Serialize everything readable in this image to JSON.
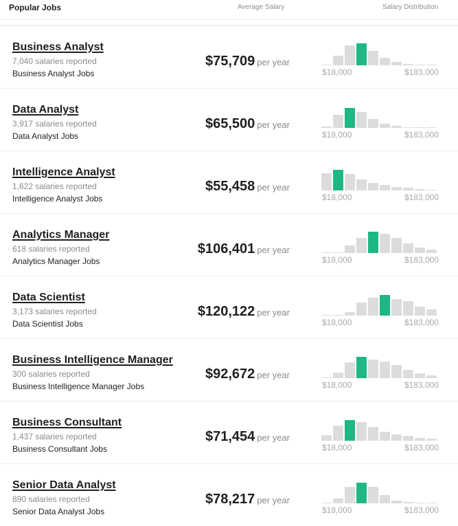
{
  "header": {
    "title": "Popular Jobs",
    "salary_label": "Average Salary",
    "distribution_label": "Salary Distribution"
  },
  "colors": {
    "active_bar": "#1fb783",
    "bar": "#dcdcdc"
  },
  "jobs": [
    {
      "title": "Business Analyst",
      "count": "7,040 salaries reported",
      "link": "Business Analyst Jobs",
      "salary": "$75,709",
      "unit": "per year",
      "min_label": "$18,000",
      "max_label": "$183,000",
      "dist": [
        0.02,
        0.38,
        0.78,
        0.86,
        0.58,
        0.3,
        0.14,
        0.06,
        0.04,
        0.02
      ],
      "active": 3
    },
    {
      "title": "Data Analyst",
      "count": "3,917 salaries reported",
      "link": "Data Analyst Jobs",
      "salary": "$65,500",
      "unit": "per year",
      "min_label": "$18,000",
      "max_label": "$183,000",
      "dist": [
        0.06,
        0.52,
        0.78,
        0.62,
        0.34,
        0.16,
        0.08,
        0.03,
        0.02,
        0.01
      ],
      "active": 2
    },
    {
      "title": "Intelligence Analyst",
      "count": "1,622 salaries reported",
      "link": "Intelligence Analyst Jobs",
      "salary": "$55,458",
      "unit": "per year",
      "min_label": "$18,000",
      "max_label": "$183,000",
      "dist": [
        0.68,
        0.8,
        0.64,
        0.42,
        0.3,
        0.22,
        0.14,
        0.1,
        0.06,
        0.04
      ],
      "active": 1
    },
    {
      "title": "Analytics Manager",
      "count": "618 salaries reported",
      "link": "Analytics Manager Jobs",
      "salary": "$106,401",
      "unit": "per year",
      "min_label": "$18,000",
      "max_label": "$183,000",
      "dist": [
        0.01,
        0.04,
        0.3,
        0.6,
        0.84,
        0.76,
        0.6,
        0.38,
        0.22,
        0.14
      ],
      "active": 4
    },
    {
      "title": "Data Scientist",
      "count": "3,173 salaries reported",
      "link": "Data Scientist Jobs",
      "salary": "$120,122",
      "unit": "per year",
      "min_label": "$18,000",
      "max_label": "$183,000",
      "dist": [
        0.01,
        0.02,
        0.14,
        0.5,
        0.7,
        0.8,
        0.64,
        0.56,
        0.36,
        0.24
      ],
      "active": 5
    },
    {
      "title": "Business Intelligence Manager",
      "count": "300 salaries reported",
      "link": "Business Intelligence Manager Jobs",
      "salary": "$92,672",
      "unit": "per year",
      "min_label": "$18,000",
      "max_label": "$183,000",
      "dist": [
        0.02,
        0.22,
        0.62,
        0.84,
        0.74,
        0.64,
        0.5,
        0.32,
        0.18,
        0.1
      ],
      "active": 3
    },
    {
      "title": "Business Consultant",
      "count": "1,437 salaries reported",
      "link": "Business Consultant Jobs",
      "salary": "$71,454",
      "unit": "per year",
      "min_label": "$18,000",
      "max_label": "$183,000",
      "dist": [
        0.22,
        0.6,
        0.82,
        0.72,
        0.54,
        0.34,
        0.24,
        0.18,
        0.12,
        0.08
      ],
      "active": 2
    },
    {
      "title": "Senior Data Analyst",
      "count": "890 salaries reported",
      "link": "Senior Data Analyst Jobs",
      "salary": "$78,217",
      "unit": "per year",
      "min_label": "$18,000",
      "max_label": "$183,000",
      "dist": [
        0.02,
        0.2,
        0.66,
        0.82,
        0.66,
        0.32,
        0.12,
        0.06,
        0.03,
        0.01
      ],
      "active": 3
    }
  ]
}
